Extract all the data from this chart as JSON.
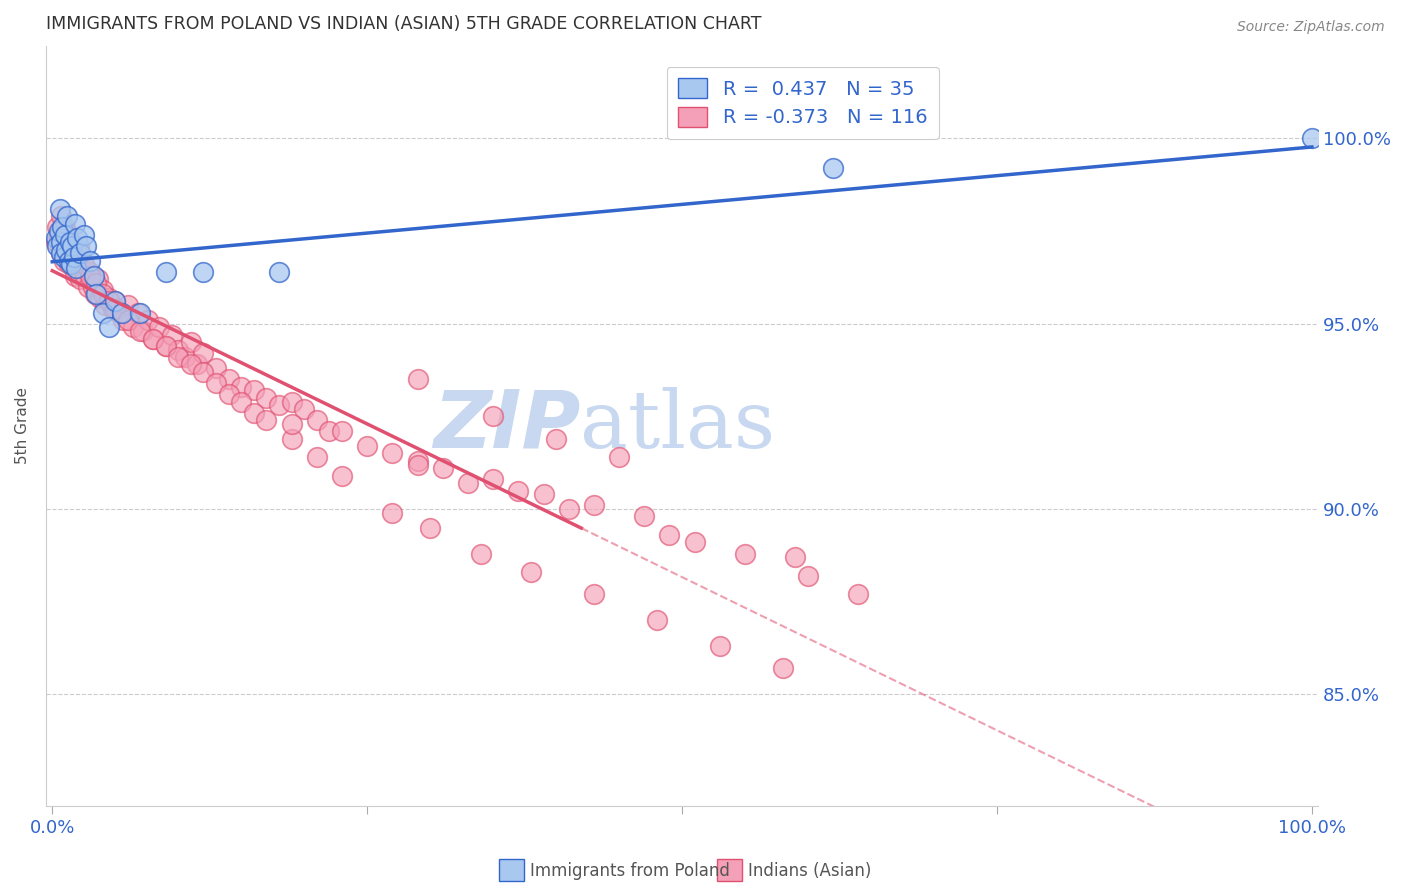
{
  "title": "IMMIGRANTS FROM POLAND VS INDIAN (ASIAN) 5TH GRADE CORRELATION CHART",
  "source": "Source: ZipAtlas.com",
  "ylabel": "5th Grade",
  "ytick_labels": [
    "100.0%",
    "95.0%",
    "90.0%",
    "85.0%"
  ],
  "ytick_positions": [
    1.0,
    0.95,
    0.9,
    0.85
  ],
  "legend_blue_label": "Immigrants from Poland",
  "legend_pink_label": "Indians (Asian)",
  "R_blue": 0.437,
  "N_blue": 35,
  "R_pink": -0.373,
  "N_pink": 116,
  "blue_color": "#A8C8F0",
  "pink_color": "#F4A0B8",
  "blue_line_color": "#3366CC",
  "pink_line_color": "#E05070",
  "watermark_zip_color": "#C8D8F0",
  "watermark_atlas_color": "#C8D8F0",
  "background_color": "#FFFFFF",
  "grid_color": "#CCCCCC",
  "title_color": "#333333",
  "axis_color": "#3366CC",
  "blue_scatter_x": [
    0.003,
    0.004,
    0.005,
    0.006,
    0.007,
    0.007,
    0.008,
    0.009,
    0.01,
    0.011,
    0.012,
    0.013,
    0.014,
    0.015,
    0.016,
    0.017,
    0.018,
    0.019,
    0.02,
    0.022,
    0.025,
    0.027,
    0.03,
    0.033,
    0.035,
    0.04,
    0.045,
    0.05,
    0.055,
    0.07,
    0.09,
    0.12,
    0.18,
    0.62,
    1.0
  ],
  "blue_scatter_y": [
    0.973,
    0.971,
    0.975,
    0.981,
    0.972,
    0.969,
    0.976,
    0.968,
    0.974,
    0.97,
    0.979,
    0.967,
    0.972,
    0.966,
    0.971,
    0.968,
    0.977,
    0.965,
    0.973,
    0.969,
    0.974,
    0.971,
    0.967,
    0.963,
    0.958,
    0.953,
    0.949,
    0.956,
    0.953,
    0.953,
    0.964,
    0.964,
    0.964,
    0.992,
    1.0
  ],
  "pink_scatter_x": [
    0.003,
    0.004,
    0.005,
    0.006,
    0.007,
    0.007,
    0.008,
    0.009,
    0.01,
    0.011,
    0.012,
    0.013,
    0.014,
    0.015,
    0.016,
    0.017,
    0.018,
    0.019,
    0.02,
    0.021,
    0.022,
    0.024,
    0.026,
    0.028,
    0.03,
    0.032,
    0.034,
    0.036,
    0.038,
    0.04,
    0.042,
    0.045,
    0.048,
    0.05,
    0.053,
    0.056,
    0.06,
    0.064,
    0.068,
    0.072,
    0.076,
    0.08,
    0.085,
    0.09,
    0.095,
    0.1,
    0.105,
    0.11,
    0.115,
    0.12,
    0.13,
    0.14,
    0.15,
    0.16,
    0.17,
    0.18,
    0.19,
    0.2,
    0.21,
    0.22,
    0.23,
    0.25,
    0.27,
    0.29,
    0.31,
    0.33,
    0.35,
    0.37,
    0.39,
    0.41,
    0.01,
    0.015,
    0.02,
    0.025,
    0.03,
    0.035,
    0.04,
    0.045,
    0.05,
    0.06,
    0.07,
    0.08,
    0.09,
    0.1,
    0.11,
    0.12,
    0.13,
    0.14,
    0.15,
    0.16,
    0.17,
    0.19,
    0.21,
    0.23,
    0.27,
    0.3,
    0.34,
    0.38,
    0.43,
    0.48,
    0.53,
    0.58,
    0.19,
    0.29,
    0.49,
    0.59,
    0.43,
    0.47,
    0.51,
    0.55,
    0.6,
    0.64,
    0.29,
    0.35,
    0.4,
    0.45
  ],
  "pink_scatter_y": [
    0.972,
    0.976,
    0.974,
    0.971,
    0.969,
    0.979,
    0.973,
    0.967,
    0.976,
    0.97,
    0.974,
    0.966,
    0.969,
    0.972,
    0.968,
    0.965,
    0.963,
    0.968,
    0.966,
    0.971,
    0.962,
    0.967,
    0.963,
    0.96,
    0.964,
    0.96,
    0.958,
    0.962,
    0.957,
    0.959,
    0.955,
    0.957,
    0.954,
    0.956,
    0.953,
    0.951,
    0.955,
    0.949,
    0.953,
    0.948,
    0.951,
    0.946,
    0.949,
    0.944,
    0.947,
    0.943,
    0.941,
    0.945,
    0.939,
    0.942,
    0.938,
    0.935,
    0.933,
    0.932,
    0.93,
    0.928,
    0.929,
    0.927,
    0.924,
    0.921,
    0.921,
    0.917,
    0.915,
    0.913,
    0.911,
    0.907,
    0.908,
    0.905,
    0.904,
    0.9,
    0.975,
    0.971,
    0.969,
    0.966,
    0.963,
    0.961,
    0.958,
    0.956,
    0.954,
    0.951,
    0.948,
    0.946,
    0.944,
    0.941,
    0.939,
    0.937,
    0.934,
    0.931,
    0.929,
    0.926,
    0.924,
    0.919,
    0.914,
    0.909,
    0.899,
    0.895,
    0.888,
    0.883,
    0.877,
    0.87,
    0.863,
    0.857,
    0.923,
    0.912,
    0.893,
    0.887,
    0.901,
    0.898,
    0.891,
    0.888,
    0.882,
    0.877,
    0.935,
    0.925,
    0.919,
    0.914
  ]
}
